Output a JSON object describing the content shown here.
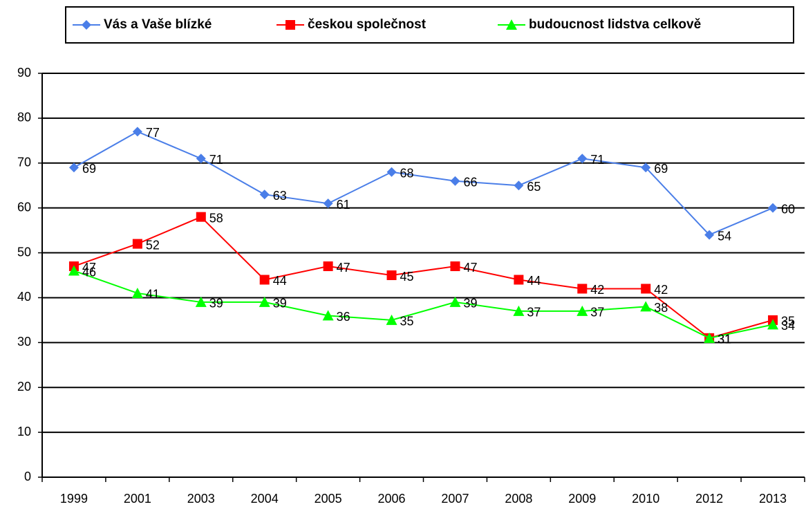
{
  "chart_data": {
    "type": "line",
    "categories": [
      "1999",
      "2001",
      "2003",
      "2004",
      "2005",
      "2006",
      "2007",
      "2008",
      "2009",
      "2010",
      "2012",
      "2013"
    ],
    "series": [
      {
        "name": "Vás a Vaše blízké",
        "color": "#4a7ee8",
        "marker": "diamond",
        "values": [
          69,
          77,
          71,
          63,
          61,
          68,
          66,
          65,
          71,
          69,
          54,
          60
        ]
      },
      {
        "name": "českou společnost",
        "color": "#ff0000",
        "marker": "square",
        "values": [
          47,
          52,
          58,
          44,
          47,
          45,
          47,
          44,
          42,
          42,
          31,
          35
        ]
      },
      {
        "name": "budoucnost lidstva celkově",
        "color": "#00ff00",
        "marker": "triangle",
        "values": [
          46,
          41,
          39,
          39,
          36,
          35,
          39,
          37,
          37,
          38,
          31,
          34
        ]
      }
    ],
    "ylim": [
      0,
      90
    ],
    "yticks": [
      0,
      10,
      20,
      30,
      40,
      50,
      60,
      70,
      80,
      90
    ],
    "grid": true,
    "legend": "top"
  }
}
